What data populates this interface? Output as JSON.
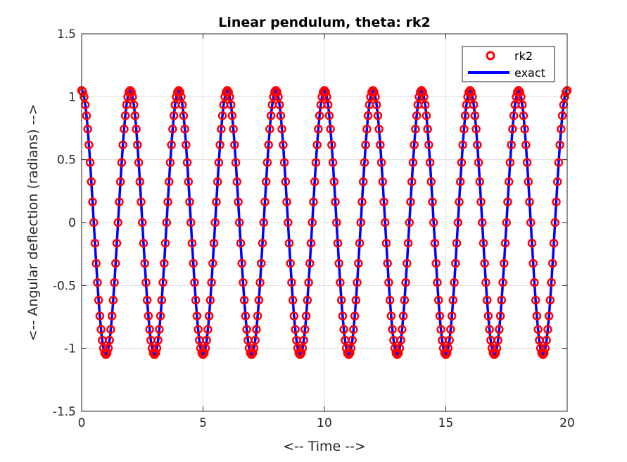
{
  "chart_data": {
    "type": "line",
    "title": "Linear pendulum, theta: rk2",
    "xlabel": "<-- Time -->",
    "ylabel": "<-- Angular deflection (radians) -->",
    "xlim": [
      0,
      20
    ],
    "ylim": [
      -1.5,
      1.5
    ],
    "xticks": [
      0,
      5,
      10,
      15,
      20
    ],
    "xtick_labels": [
      "0",
      "5",
      "10",
      "15",
      "20"
    ],
    "yticks": [
      -1.5,
      -1,
      -0.5,
      0,
      0.5,
      1,
      1.5
    ],
    "ytick_labels": [
      "-1.5",
      "-1",
      "-0.5",
      "0",
      "0.5",
      "1",
      "1.5"
    ],
    "grid": true,
    "legend_position": "top-right",
    "series": [
      {
        "name": "rk2",
        "style": "markers",
        "marker": "circle",
        "color": "#ff0000",
        "function": "1.05*cos(pi*t)",
        "t_start": 0,
        "t_end": 20,
        "t_step": 0.05
      },
      {
        "name": "exact",
        "style": "line",
        "color": "#0000ff",
        "function": "1.05*cos(pi*t)",
        "t_start": 0,
        "t_end": 20,
        "t_step": 0.01
      }
    ]
  }
}
